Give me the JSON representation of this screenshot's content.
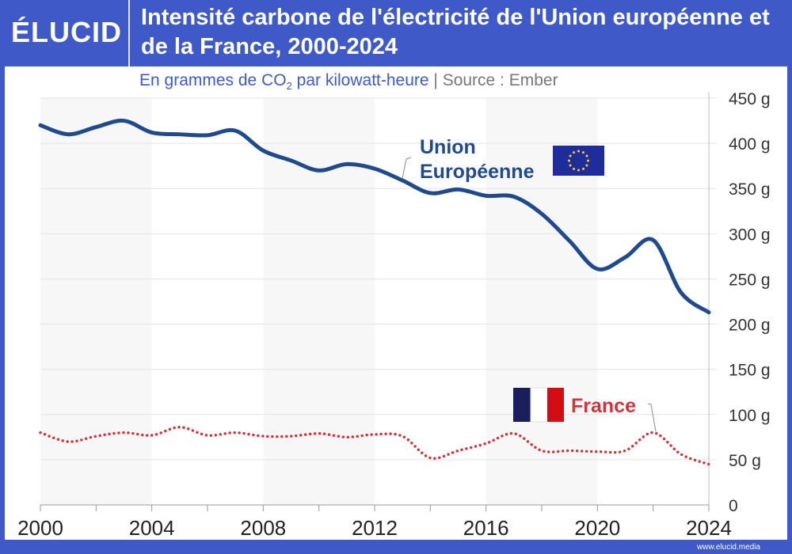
{
  "brand": {
    "logo": "ÉLUCID",
    "website": "www.elucid.media"
  },
  "header": {
    "title": "Intensité carbone de l'électricité de l'Union européenne et de la France, 2000-2024"
  },
  "subtitle": {
    "prefix": "En grammes de CO",
    "sub": "2",
    "suffix": " par kilowatt-heure",
    "separator": " | ",
    "source": "Source : Ember"
  },
  "chart_data": {
    "type": "line",
    "title": "Intensité carbone de l'électricité de l'Union européenne et de la France, 2000-2024",
    "ylabel": "En grammes de CO2 par kilowatt-heure",
    "x": [
      2000,
      2001,
      2002,
      2003,
      2004,
      2005,
      2006,
      2007,
      2008,
      2009,
      2010,
      2011,
      2012,
      2013,
      2014,
      2015,
      2016,
      2017,
      2018,
      2019,
      2020,
      2021,
      2022,
      2023,
      2024
    ],
    "xlim": [
      2000,
      2024
    ],
    "ylim": [
      0,
      450
    ],
    "xticks": [
      "2000",
      "2004",
      "2008",
      "2012",
      "2016",
      "2020",
      "2024"
    ],
    "yticks": [
      "0",
      "50 g",
      "100 g",
      "150 g",
      "200 g",
      "250 g",
      "300 g",
      "350 g",
      "400 g",
      "450 g"
    ],
    "grid": true,
    "series": [
      {
        "name": "Union Européenne",
        "label_lines": [
          "Union",
          "Européenne"
        ],
        "color": "#1f4b8e",
        "style": "solid",
        "values": [
          420,
          410,
          418,
          425,
          412,
          410,
          409,
          414,
          392,
          381,
          370,
          377,
          372,
          359,
          345,
          349,
          342,
          341,
          322,
          292,
          261,
          274,
          293,
          235,
          213
        ]
      },
      {
        "name": "France",
        "color": "#d0343c",
        "style": "dotted",
        "values": [
          80,
          70,
          76,
          80,
          77,
          86,
          77,
          80,
          76,
          76,
          79,
          75,
          78,
          76,
          52,
          60,
          68,
          79,
          60,
          60,
          59,
          60,
          80,
          56,
          45
        ]
      }
    ]
  }
}
